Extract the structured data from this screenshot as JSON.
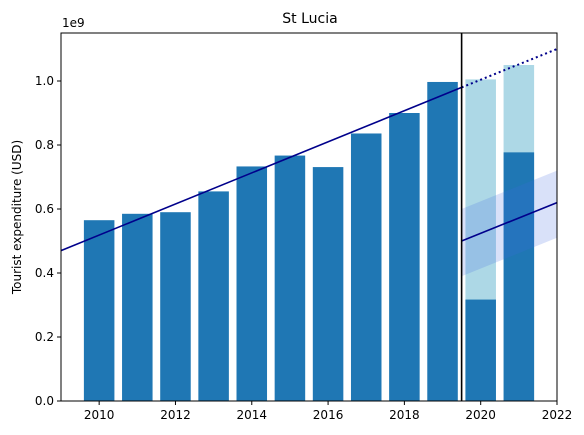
{
  "chart_data": {
    "type": "bar",
    "title": "St Lucia",
    "xlabel": "",
    "ylabel": "Tourist expenditure (USD)",
    "y_offset_label": "1e9",
    "xlim": [
      2009,
      2022
    ],
    "ylim": [
      0,
      1150000000
    ],
    "x_ticks": [
      2010,
      2012,
      2014,
      2016,
      2018,
      2020,
      2022
    ],
    "x_tick_labels": [
      "2010",
      "2012",
      "2014",
      "2016",
      "2018",
      "2020",
      "2022"
    ],
    "y_ticks": [
      0,
      200000000,
      400000000,
      600000000,
      800000000,
      1000000000
    ],
    "y_tick_labels": [
      "0.0",
      "0.2",
      "0.4",
      "0.6",
      "0.8",
      "1.0"
    ],
    "grid": false,
    "series": [
      {
        "kind": "bar",
        "color": "#1f77b4",
        "x": [
          2010,
          2011,
          2012,
          2013,
          2014,
          2015,
          2016,
          2017,
          2018,
          2019,
          2020,
          2021
        ],
        "values": [
          565000000,
          585000000,
          590000000,
          655000000,
          733000000,
          767000000,
          731000000,
          836000000,
          900000000,
          997000000,
          317000000,
          777000000
        ]
      },
      {
        "kind": "bar",
        "color": "#add8e6",
        "x": [
          2020,
          2021
        ],
        "values": [
          1005000000,
          1050000000
        ]
      },
      {
        "kind": "line",
        "color": "#00008b",
        "style": "solid",
        "x": [
          2009,
          2019.5
        ],
        "y": [
          470000000,
          980000000
        ]
      },
      {
        "kind": "line",
        "color": "#00008b",
        "style": "dotted",
        "x": [
          2019.5,
          2022
        ],
        "y": [
          980000000,
          1100000000
        ]
      },
      {
        "kind": "line",
        "color": "#00008b",
        "style": "solid",
        "x": [
          2019.5,
          2022
        ],
        "y": [
          500000000,
          620000000
        ]
      },
      {
        "kind": "band",
        "color": "#4169e1",
        "x": [
          2019.5,
          2022
        ],
        "lower": [
          390000000,
          510000000
        ],
        "upper": [
          600000000,
          720000000
        ]
      }
    ],
    "vertical_line": {
      "x": 2019.5,
      "color": "#000000"
    }
  }
}
